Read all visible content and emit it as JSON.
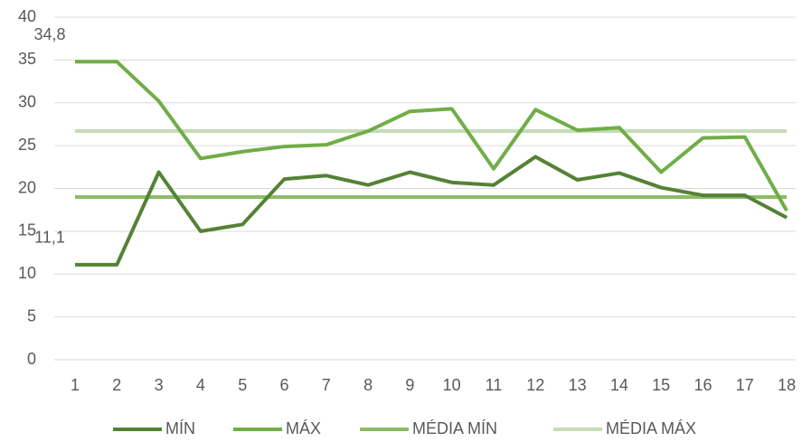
{
  "chart_data": {
    "type": "line",
    "categories": [
      "1",
      "2",
      "3",
      "4",
      "5",
      "6",
      "7",
      "8",
      "9",
      "10",
      "11",
      "12",
      "13",
      "14",
      "15",
      "16",
      "17",
      "18"
    ],
    "series": [
      {
        "name": "MÍN",
        "color": "#548235",
        "values": [
          11.1,
          11.1,
          21.9,
          15.0,
          15.8,
          21.1,
          21.5,
          20.4,
          21.9,
          20.7,
          20.4,
          23.7,
          21.0,
          21.8,
          20.1,
          19.2,
          19.2,
          16.6
        ],
        "value_labels": [
          "11,1",
          null,
          null,
          null,
          null,
          null,
          null,
          null,
          null,
          null,
          null,
          null,
          null,
          null,
          null,
          null,
          null,
          null
        ]
      },
      {
        "name": "MÁX",
        "color": "#70ad47",
        "values": [
          34.8,
          34.8,
          30.2,
          23.5,
          24.3,
          24.9,
          25.1,
          26.7,
          29.0,
          29.3,
          22.3,
          29.2,
          26.8,
          27.1,
          21.9,
          25.9,
          26.0,
          17.4
        ],
        "value_labels": [
          "34,8",
          null,
          null,
          null,
          null,
          null,
          null,
          null,
          null,
          null,
          null,
          null,
          null,
          null,
          null,
          null,
          null,
          null
        ]
      },
      {
        "name": "MÉDIA MÍN",
        "color": "#8cbb68",
        "values": [
          19.0,
          19.0,
          19.0,
          19.0,
          19.0,
          19.0,
          19.0,
          19.0,
          19.0,
          19.0,
          19.0,
          19.0,
          19.0,
          19.0,
          19.0,
          19.0,
          19.0,
          19.0
        ]
      },
      {
        "name": "MÉDIA MÁX",
        "color": "#c5dcb4",
        "values": [
          26.7,
          26.7,
          26.7,
          26.7,
          26.7,
          26.7,
          26.7,
          26.7,
          26.7,
          26.7,
          26.7,
          26.7,
          26.7,
          26.7,
          26.7,
          26.7,
          26.7,
          26.7
        ]
      }
    ],
    "ylim": [
      0,
      40
    ],
    "yticks": [
      0,
      5,
      10,
      15,
      20,
      25,
      30,
      35,
      40
    ],
    "grid": true,
    "legend": "bottom"
  }
}
